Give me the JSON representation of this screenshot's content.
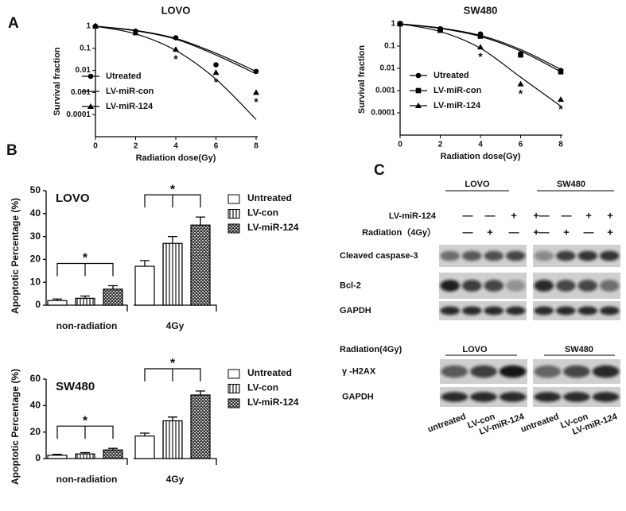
{
  "panel_labels": [
    "A",
    "B",
    "C"
  ],
  "chart_data": [
    {
      "type": "line",
      "title": "LOVO",
      "x_label": "Radiation dose(Gy)",
      "y_label": "Survival fraction",
      "x": [
        0,
        2,
        4,
        6,
        8
      ],
      "xlim": [
        0,
        8
      ],
      "xticks": [
        0,
        2,
        4,
        6,
        8
      ],
      "ylim": [
        1e-05,
        1
      ],
      "yticks": [
        1,
        0.1,
        0.01,
        0.001,
        0.0001
      ],
      "log_y": true,
      "series": [
        {
          "name": "Utreated",
          "color": "#000000",
          "marker": "circle",
          "values": [
            1,
            0.6,
            0.3,
            0.018,
            0.009
          ],
          "fit": [
            1,
            0.65,
            0.28,
            0.06,
            0.009
          ]
        },
        {
          "name": "LV-miR-con",
          "color": "#000000",
          "marker": "none",
          "values": [
            1,
            0.55,
            0.28,
            0.015,
            0.008
          ],
          "fit": [
            1,
            0.62,
            0.26,
            0.05,
            0.007
          ]
        },
        {
          "name": "LV-miR-124",
          "color": "#000000",
          "marker": "triangle",
          "values": [
            1,
            0.5,
            0.09,
            0.008,
            0.001
          ],
          "fit": [
            1,
            0.45,
            0.08,
            0.004,
            6e-05
          ]
        }
      ],
      "annotations": [
        {
          "x": 4,
          "text": "*"
        },
        {
          "x": 6,
          "text": "*"
        },
        {
          "x": 8,
          "text": "*"
        }
      ]
    },
    {
      "type": "line",
      "title": "SW480",
      "x_label": "Radiation dose(Gy)",
      "y_label": "Survival fraction",
      "x": [
        0,
        2,
        4,
        6,
        8
      ],
      "xlim": [
        0,
        8
      ],
      "xticks": [
        0,
        2,
        4,
        6,
        8
      ],
      "ylim": [
        1e-05,
        1
      ],
      "yticks": [
        1,
        0.1,
        0.01,
        0.001,
        0.0001
      ],
      "log_y": true,
      "series": [
        {
          "name": "Utreated",
          "color": "#000000",
          "marker": "circle",
          "values": [
            1,
            0.6,
            0.35,
            0.045,
            0.008
          ],
          "fit": [
            1,
            0.65,
            0.3,
            0.07,
            0.009
          ]
        },
        {
          "name": "LV-miR-con",
          "color": "#000000",
          "marker": "square",
          "values": [
            1,
            0.55,
            0.28,
            0.04,
            0.007
          ],
          "fit": [
            1,
            0.62,
            0.27,
            0.06,
            0.007
          ]
        },
        {
          "name": "LV-miR-124",
          "color": "#000000",
          "marker": "triangle",
          "values": [
            1,
            0.5,
            0.09,
            0.002,
            0.0004
          ],
          "fit": [
            1,
            0.45,
            0.08,
            0.004,
            0.0002
          ]
        }
      ],
      "annotations": [
        {
          "x": 4,
          "text": "*"
        },
        {
          "x": 6,
          "text": "*"
        },
        {
          "x": 8,
          "text": "*"
        }
      ]
    },
    {
      "type": "bar",
      "title": "LOVO",
      "y_label": "Apoptotic Percentage (%)",
      "categories": [
        "non-radiation",
        "4Gy"
      ],
      "ylim": [
        0,
        50
      ],
      "yticks": [
        0,
        10,
        20,
        30,
        40,
        50
      ],
      "series": [
        {
          "name": "Untreated",
          "pattern": "none",
          "values": [
            2,
            17
          ],
          "errors": [
            0.7,
            2.5
          ]
        },
        {
          "name": "LV-con",
          "pattern": "stripes",
          "values": [
            3,
            27
          ],
          "errors": [
            1,
            3
          ]
        },
        {
          "name": "LV-miR-124",
          "pattern": "checks",
          "values": [
            7,
            35
          ],
          "errors": [
            1.5,
            3.5
          ]
        }
      ],
      "brackets": [
        {
          "category": 0,
          "text": "*"
        },
        {
          "category": 1,
          "text": "*"
        }
      ]
    },
    {
      "type": "bar",
      "title": "SW480",
      "y_label": "Apoptotic Percentage (%)",
      "categories": [
        "non-radiation",
        "4Gy"
      ],
      "ylim": [
        0,
        60
      ],
      "yticks": [
        0,
        20,
        40,
        60
      ],
      "series": [
        {
          "name": "Untreated",
          "pattern": "none",
          "values": [
            2.5,
            17
          ],
          "errors": [
            0.7,
            2.2
          ]
        },
        {
          "name": "LV-con",
          "pattern": "stripes",
          "values": [
            3.5,
            28.5
          ],
          "errors": [
            1,
            2.8
          ]
        },
        {
          "name": "LV-miR-124",
          "pattern": "checks",
          "values": [
            6.5,
            48
          ],
          "errors": [
            1.2,
            3
          ]
        }
      ],
      "brackets": [
        {
          "category": 0,
          "text": "*"
        },
        {
          "category": 1,
          "text": "*"
        }
      ]
    }
  ],
  "blot": {
    "top": {
      "groups": [
        "LOVO",
        "SW480"
      ],
      "conditions": [
        {
          "label": "LV-miR-124",
          "signs": [
            "—",
            "—",
            "+",
            "+",
            "—",
            "—",
            "+",
            "+"
          ]
        },
        {
          "label": "Radiation（4Gy）",
          "signs": [
            "—",
            "+",
            "—",
            "+",
            "—",
            "+",
            "—",
            "+"
          ]
        }
      ],
      "rows": [
        "Cleaved caspase-3",
        "Bcl-2",
        "GAPDH"
      ]
    },
    "bottom": {
      "condition": "Radiation(4Gy)",
      "groups": [
        "LOVO",
        "SW480"
      ],
      "rows": [
        "γ -H2AX",
        "GAPDH"
      ],
      "lanes": [
        "untreated",
        "LV-con",
        "LV-miR-124",
        "untreated",
        "LV-con",
        "LV-miR-124"
      ]
    }
  }
}
